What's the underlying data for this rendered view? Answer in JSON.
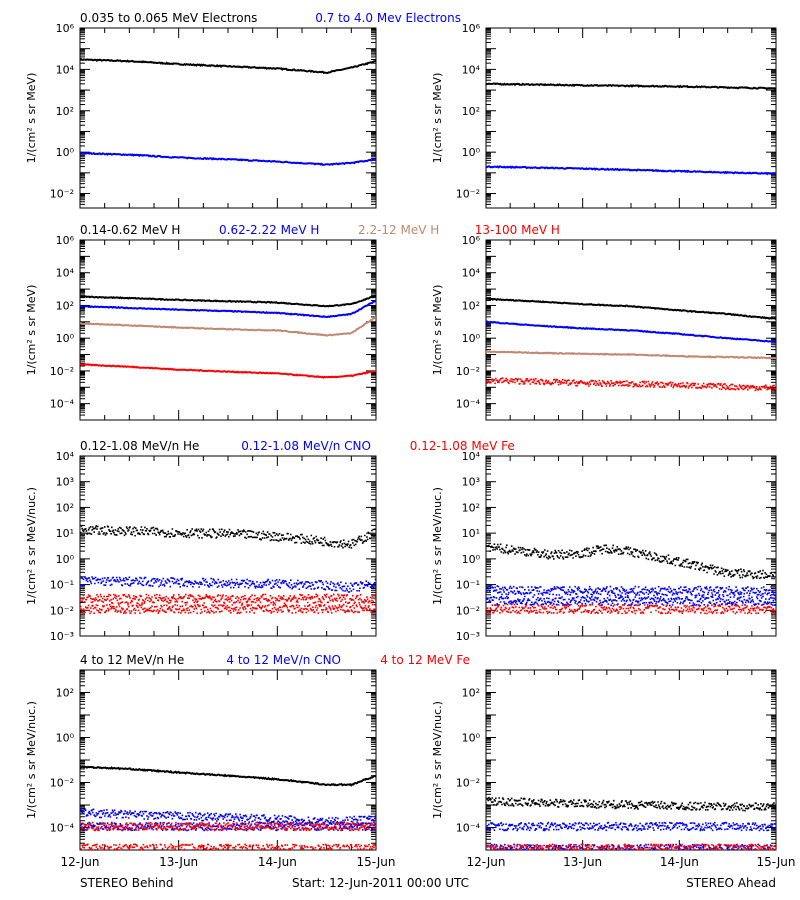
{
  "colors": {
    "black": "#000000",
    "blue": "#0000ff",
    "tan": "#c08870",
    "red": "#ff0000"
  },
  "footer": {
    "left": "STEREO Behind",
    "center": "Start: 12-Jun-2011 00:00 UTC",
    "right": "STEREO Ahead"
  },
  "chart_data": [
    {
      "type": "line",
      "id": "electrons-behind",
      "side": "behind",
      "legend": [
        {
          "text": "0.035 to 0.065 MeV Electrons",
          "color": "#000000"
        },
        {
          "text": "0.7 to 4.0 Mev Electrons",
          "color": "#0000ff"
        }
      ],
      "ylabel": "1/(cm² s sr MeV)",
      "yscale": "log",
      "ylim": [
        0.002,
        1000000
      ],
      "yticks": [
        0.01,
        1,
        100,
        10000,
        1000000
      ],
      "ytick_labels": [
        "10⁻²",
        "10⁰",
        "10²",
        "10⁴",
        "10⁶"
      ],
      "xlim": [
        "2011-06-12",
        "2011-06-15"
      ],
      "xtick_labels": [],
      "series": [
        {
          "color": "#000000",
          "style": "line",
          "x": [
            "2011-06-12",
            "2011-06-12T12:00",
            "2011-06-13",
            "2011-06-13T12:00",
            "2011-06-14",
            "2011-06-14T12:00",
            "2011-06-14T18:00",
            "2011-06-15"
          ],
          "values": [
            30000,
            25000,
            18000,
            14000,
            11000,
            7000,
            12000,
            25000
          ]
        },
        {
          "color": "#0000ff",
          "style": "line",
          "x": [
            "2011-06-12",
            "2011-06-12T12:00",
            "2011-06-13",
            "2011-06-13T12:00",
            "2011-06-14",
            "2011-06-14T12:00",
            "2011-06-14T18:00",
            "2011-06-15"
          ],
          "values": [
            0.9,
            0.75,
            0.55,
            0.45,
            0.35,
            0.25,
            0.3,
            0.45
          ]
        }
      ]
    },
    {
      "type": "line",
      "id": "electrons-ahead",
      "side": "ahead",
      "legend": [],
      "ylabel": "1/(cm² s sr MeV)",
      "yscale": "log",
      "ylim": [
        0.002,
        1000000
      ],
      "yticks": [
        0.01,
        1,
        100,
        10000,
        1000000
      ],
      "ytick_labels": [
        "10⁻²",
        "10⁰",
        "10²",
        "10⁴",
        "10⁶"
      ],
      "xlim": [
        "2011-06-12",
        "2011-06-15"
      ],
      "xtick_labels": [],
      "series": [
        {
          "color": "#000000",
          "style": "line",
          "x": [
            "2011-06-12",
            "2011-06-13",
            "2011-06-14",
            "2011-06-15"
          ],
          "values": [
            2000,
            1700,
            1500,
            1200
          ]
        },
        {
          "color": "#0000ff",
          "style": "line",
          "x": [
            "2011-06-12",
            "2011-06-13",
            "2011-06-14",
            "2011-06-15"
          ],
          "values": [
            0.2,
            0.16,
            0.12,
            0.09
          ]
        }
      ]
    },
    {
      "type": "line",
      "id": "protons-behind",
      "side": "behind",
      "legend": [
        {
          "text": "0.14-0.62 MeV H",
          "color": "#000000"
        },
        {
          "text": "0.62-2.22 MeV H",
          "color": "#0000ff"
        },
        {
          "text": "2.2-12 MeV H",
          "color": "#c08870"
        },
        {
          "text": "13-100 MeV H",
          "color": "#ff0000"
        }
      ],
      "ylabel": "1/(cm² s sr MeV)",
      "yscale": "log",
      "ylim": [
        1e-05,
        1000000
      ],
      "yticks": [
        0.0001,
        0.01,
        1,
        100,
        10000,
        1000000
      ],
      "ytick_labels": [
        "10⁻⁴",
        "10⁻²",
        "10⁰",
        "10²",
        "10⁴",
        "10⁶"
      ],
      "xlim": [
        "2011-06-12",
        "2011-06-15"
      ],
      "xtick_labels": [],
      "series": [
        {
          "color": "#000000",
          "style": "line",
          "x": [
            "2011-06-12",
            "2011-06-12T12:00",
            "2011-06-13",
            "2011-06-13T12:00",
            "2011-06-14",
            "2011-06-14T12:00",
            "2011-06-14T18:00",
            "2011-06-15"
          ],
          "values": [
            350,
            280,
            220,
            180,
            150,
            90,
            120,
            400
          ]
        },
        {
          "color": "#0000ff",
          "style": "line",
          "x": [
            "2011-06-12",
            "2011-06-12T12:00",
            "2011-06-13",
            "2011-06-13T12:00",
            "2011-06-14",
            "2011-06-14T12:00",
            "2011-06-14T18:00",
            "2011-06-15"
          ],
          "values": [
            90,
            70,
            55,
            45,
            35,
            20,
            30,
            200
          ]
        },
        {
          "color": "#c08870",
          "style": "line",
          "x": [
            "2011-06-12",
            "2011-06-12T12:00",
            "2011-06-13",
            "2011-06-13T12:00",
            "2011-06-14",
            "2011-06-14T12:00",
            "2011-06-14T18:00",
            "2011-06-15"
          ],
          "values": [
            8,
            6,
            4.5,
            3.5,
            3,
            1.5,
            2,
            20
          ]
        },
        {
          "color": "#ff0000",
          "style": "line",
          "x": [
            "2011-06-12",
            "2011-06-12T12:00",
            "2011-06-13",
            "2011-06-13T12:00",
            "2011-06-14",
            "2011-06-14T12:00",
            "2011-06-14T18:00",
            "2011-06-15"
          ],
          "values": [
            0.025,
            0.018,
            0.012,
            0.009,
            0.007,
            0.004,
            0.005,
            0.01
          ]
        }
      ]
    },
    {
      "type": "line",
      "id": "protons-ahead",
      "side": "ahead",
      "legend": [],
      "ylabel": "1/(cm² s sr MeV)",
      "yscale": "log",
      "ylim": [
        1e-05,
        1000000
      ],
      "yticks": [
        0.0001,
        0.01,
        1,
        100,
        10000,
        1000000
      ],
      "ytick_labels": [
        "10⁻⁴",
        "10⁻²",
        "10⁰",
        "10²",
        "10⁴",
        "10⁶"
      ],
      "xlim": [
        "2011-06-12",
        "2011-06-15"
      ],
      "xtick_labels": [],
      "series": [
        {
          "color": "#000000",
          "style": "line",
          "x": [
            "2011-06-12",
            "2011-06-12T12:00",
            "2011-06-13",
            "2011-06-13T12:00",
            "2011-06-14",
            "2011-06-14T12:00",
            "2011-06-15"
          ],
          "values": [
            250,
            180,
            120,
            90,
            50,
            30,
            15
          ]
        },
        {
          "color": "#0000ff",
          "style": "line",
          "x": [
            "2011-06-12",
            "2011-06-12T12:00",
            "2011-06-13",
            "2011-06-13T12:00",
            "2011-06-14",
            "2011-06-14T12:00",
            "2011-06-15"
          ],
          "values": [
            10,
            6,
            4,
            3,
            1.8,
            1,
            0.6
          ]
        },
        {
          "color": "#c08870",
          "style": "line",
          "x": [
            "2011-06-12",
            "2011-06-12T12:00",
            "2011-06-13",
            "2011-06-13T12:00",
            "2011-06-14",
            "2011-06-14T12:00",
            "2011-06-15"
          ],
          "values": [
            0.15,
            0.13,
            0.11,
            0.1,
            0.08,
            0.07,
            0.06
          ]
        },
        {
          "color": "#ff0000",
          "style": "scatter",
          "x": [
            "2011-06-12",
            "2011-06-12T12:00",
            "2011-06-13",
            "2011-06-13T12:00",
            "2011-06-14",
            "2011-06-14T12:00",
            "2011-06-15"
          ],
          "values": [
            0.003,
            0.0025,
            0.002,
            0.0018,
            0.0015,
            0.0012,
            0.001
          ]
        }
      ]
    },
    {
      "type": "scatter",
      "id": "heavy-low-behind",
      "side": "behind",
      "legend": [
        {
          "text": "0.12-1.08 MeV/n He",
          "color": "#000000"
        },
        {
          "text": "0.12-1.08 MeV/n CNO",
          "color": "#0000ff"
        },
        {
          "text": "0.12-1.08 MeV Fe",
          "color": "#ff0000"
        }
      ],
      "ylabel": "1/(cm² s sr MeV/nuc.)",
      "yscale": "log",
      "ylim": [
        0.001,
        10000
      ],
      "yticks": [
        0.001,
        0.01,
        0.1,
        1,
        10,
        100,
        1000,
        10000
      ],
      "ytick_labels": [
        "10⁻³",
        "10⁻²",
        "10⁻¹",
        "10⁰",
        "10¹",
        "10²",
        "10³",
        "10⁴"
      ],
      "xlim": [
        "2011-06-12",
        "2011-06-15"
      ],
      "xtick_labels": [],
      "series": [
        {
          "color": "#000000",
          "style": "scatter",
          "x": [
            "2011-06-12",
            "2011-06-12T12:00",
            "2011-06-13",
            "2011-06-13T12:00",
            "2011-06-14",
            "2011-06-14T12:00",
            "2011-06-14T18:00",
            "2011-06-15"
          ],
          "values": [
            14,
            13,
            11,
            10,
            8,
            5,
            4,
            12
          ]
        },
        {
          "color": "#0000ff",
          "style": "scatter",
          "x": [
            "2011-06-12",
            "2011-06-12T12:00",
            "2011-06-13",
            "2011-06-13T12:00",
            "2011-06-14",
            "2011-06-14T12:00",
            "2011-06-14T18:00",
            "2011-06-15"
          ],
          "values": [
            0.15,
            0.14,
            0.13,
            0.12,
            0.11,
            0.1,
            0.08,
            0.12
          ]
        },
        {
          "color": "#ff0000",
          "style": "scatter",
          "x": [
            "2011-06-12",
            "2011-06-13",
            "2011-06-14",
            "2011-06-15"
          ],
          "values": [
            0.03,
            0.03,
            0.03,
            0.03
          ]
        },
        {
          "color": "#ff0000",
          "style": "scatter",
          "x": [
            "2011-06-12",
            "2011-06-13",
            "2011-06-14",
            "2011-06-15"
          ],
          "values": [
            0.012,
            0.012,
            0.012,
            0.012
          ]
        }
      ]
    },
    {
      "type": "scatter",
      "id": "heavy-low-ahead",
      "side": "ahead",
      "legend": [],
      "ylabel": "1/(cm² s sr MeV/nuc.)",
      "yscale": "log",
      "ylim": [
        0.001,
        10000
      ],
      "yticks": [
        0.001,
        0.01,
        0.1,
        1,
        10,
        100,
        1000,
        10000
      ],
      "ytick_labels": [
        "10⁻³",
        "10⁻²",
        "10⁻¹",
        "10⁰",
        "10¹",
        "10²",
        "10³",
        "10⁴"
      ],
      "xlim": [
        "2011-06-12",
        "2011-06-15"
      ],
      "xtick_labels": [],
      "series": [
        {
          "color": "#000000",
          "style": "scatter",
          "x": [
            "2011-06-12",
            "2011-06-12T08:00",
            "2011-06-12T16:00",
            "2011-06-13",
            "2011-06-13T06:00",
            "2011-06-13T12:00",
            "2011-06-14",
            "2011-06-14T12:00",
            "2011-06-15"
          ],
          "values": [
            3,
            2.3,
            1.5,
            1.8,
            2.8,
            2,
            0.8,
            0.3,
            0.25
          ]
        },
        {
          "color": "#0000ff",
          "style": "scatter",
          "x": [
            "2011-06-12",
            "2011-06-12T12:00",
            "2011-06-13",
            "2011-06-13T12:00"
          ],
          "values": [
            0.07,
            0.06,
            0.06,
            0.06
          ]
        },
        {
          "color": "#0000ff",
          "style": "scatter",
          "x": [
            "2011-06-12",
            "2011-06-13",
            "2011-06-14",
            "2011-06-15"
          ],
          "values": [
            0.025,
            0.025,
            0.025,
            0.025
          ]
        },
        {
          "color": "#ff0000",
          "style": "scatter",
          "x": [
            "2011-06-12",
            "2011-06-13",
            "2011-06-14",
            "2011-06-15"
          ],
          "values": [
            0.012,
            0.012,
            0.012,
            0.012
          ]
        }
      ]
    },
    {
      "type": "scatter",
      "id": "heavy-high-behind",
      "side": "behind",
      "legend": [
        {
          "text": "4 to 12 MeV/n He",
          "color": "#000000"
        },
        {
          "text": "4 to 12 MeV/n CNO",
          "color": "#0000ff"
        },
        {
          "text": "4 to 12 MeV Fe",
          "color": "#ff0000"
        }
      ],
      "ylabel": "1/(cm² s sr MeV/nuc.)",
      "yscale": "log",
      "ylim": [
        1e-05,
        1000
      ],
      "yticks": [
        0.0001,
        0.01,
        1,
        100
      ],
      "ytick_labels": [
        "10⁻⁴",
        "10⁻²",
        "10⁰",
        "10²"
      ],
      "xlim": [
        "2011-06-12",
        "2011-06-15"
      ],
      "xtick_labels": [
        "12-Jun",
        "13-Jun",
        "14-Jun",
        "15-Jun"
      ],
      "series": [
        {
          "color": "#000000",
          "style": "line",
          "x": [
            "2011-06-12",
            "2011-06-12T12:00",
            "2011-06-13",
            "2011-06-13T12:00",
            "2011-06-14",
            "2011-06-14T12:00",
            "2011-06-14T18:00",
            "2011-06-15"
          ],
          "values": [
            0.05,
            0.04,
            0.028,
            0.02,
            0.014,
            0.008,
            0.008,
            0.02
          ]
        },
        {
          "color": "#0000ff",
          "style": "scatter",
          "x": [
            "2011-06-12",
            "2011-06-12T12:00",
            "2011-06-13",
            "2011-06-13T12:00",
            "2011-06-14",
            "2011-06-14T12:00",
            "2011-06-15"
          ],
          "values": [
            0.0005,
            0.0004,
            0.00035,
            0.0003,
            0.00025,
            0.0002,
            0.00025
          ]
        },
        {
          "color": "#0000ff",
          "style": "scatter",
          "x": [
            "2011-06-12",
            "2011-06-13",
            "2011-06-14",
            "2011-06-15"
          ],
          "values": [
            0.00012,
            0.00012,
            0.00012,
            0.00012
          ]
        },
        {
          "color": "#ff0000",
          "style": "scatter",
          "x": [
            "2011-06-12",
            "2011-06-13",
            "2011-06-14",
            "2011-06-15"
          ],
          "values": [
            0.00012,
            0.00012,
            0.00012,
            0.00012
          ]
        },
        {
          "color": "#ff0000",
          "style": "scatter",
          "x": [
            "2011-06-12",
            "2011-06-13",
            "2011-06-14",
            "2011-06-15"
          ],
          "values": [
            1.3e-05,
            1.3e-05,
            1.3e-05,
            1.3e-05
          ]
        }
      ]
    },
    {
      "type": "scatter",
      "id": "heavy-high-ahead",
      "side": "ahead",
      "legend": [],
      "ylabel": "1/(cm² s sr MeV/nuc.)",
      "yscale": "log",
      "ylim": [
        1e-05,
        1000
      ],
      "yticks": [
        0.0001,
        0.01,
        1,
        100
      ],
      "ytick_labels": [
        "10⁻⁴",
        "10⁻²",
        "10⁰",
        "10²"
      ],
      "xlim": [
        "2011-06-12",
        "2011-06-15"
      ],
      "xtick_labels": [
        "12-Jun",
        "13-Jun",
        "14-Jun",
        "15-Jun"
      ],
      "series": [
        {
          "color": "#000000",
          "style": "scatter",
          "x": [
            "2011-06-12",
            "2011-06-12T12:00",
            "2011-06-13",
            "2011-06-13T12:00",
            "2011-06-14",
            "2011-06-14T12:00",
            "2011-06-15"
          ],
          "values": [
            0.0016,
            0.0014,
            0.0012,
            0.0011,
            0.001,
            0.0009,
            0.0009
          ]
        },
        {
          "color": "#0000ff",
          "style": "scatter",
          "x": [
            "2011-06-12",
            "2011-06-13",
            "2011-06-14",
            "2011-06-15"
          ],
          "values": [
            0.00012,
            0.00012,
            0.00012,
            0.00012
          ]
        },
        {
          "color": "#0000ff",
          "style": "scatter",
          "x": [
            "2011-06-12",
            "2011-06-13",
            "2011-06-14",
            "2011-06-15"
          ],
          "values": [
            1.3e-05,
            1.3e-05,
            1.3e-05,
            1.3e-05
          ]
        },
        {
          "color": "#ff0000",
          "style": "scatter",
          "x": [
            "2011-06-12",
            "2011-06-13",
            "2011-06-14",
            "2011-06-15"
          ],
          "values": [
            1.3e-05,
            1.3e-05,
            1.3e-05,
            1.3e-05
          ]
        }
      ]
    }
  ]
}
